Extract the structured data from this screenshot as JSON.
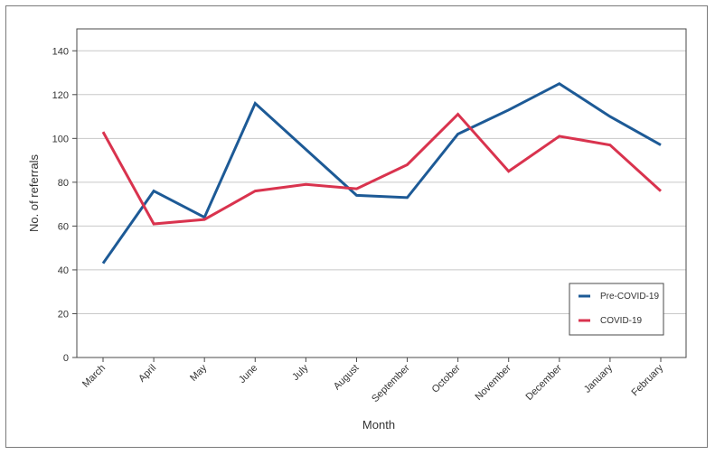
{
  "chart_data": {
    "type": "line",
    "xlabel": "Month",
    "ylabel": "No. of referrals",
    "categories": [
      "March",
      "April",
      "May",
      "June",
      "July",
      "August",
      "September",
      "October",
      "November",
      "December",
      "January",
      "February"
    ],
    "ylim": [
      0,
      150
    ],
    "yticks": [
      0,
      20,
      40,
      60,
      80,
      100,
      120,
      140
    ],
    "grid": "horizontal",
    "legend_position": "bottom-right",
    "series": [
      {
        "name": "Pre-COVID-19",
        "color": "#1d5a96",
        "values": [
          43,
          76,
          64,
          116,
          95,
          74,
          73,
          102,
          113,
          125,
          110,
          97
        ]
      },
      {
        "name": "COVID-19",
        "color": "#d9334e",
        "values": [
          103,
          61,
          63,
          76,
          79,
          77,
          88,
          111,
          85,
          101,
          97,
          76
        ]
      }
    ]
  }
}
